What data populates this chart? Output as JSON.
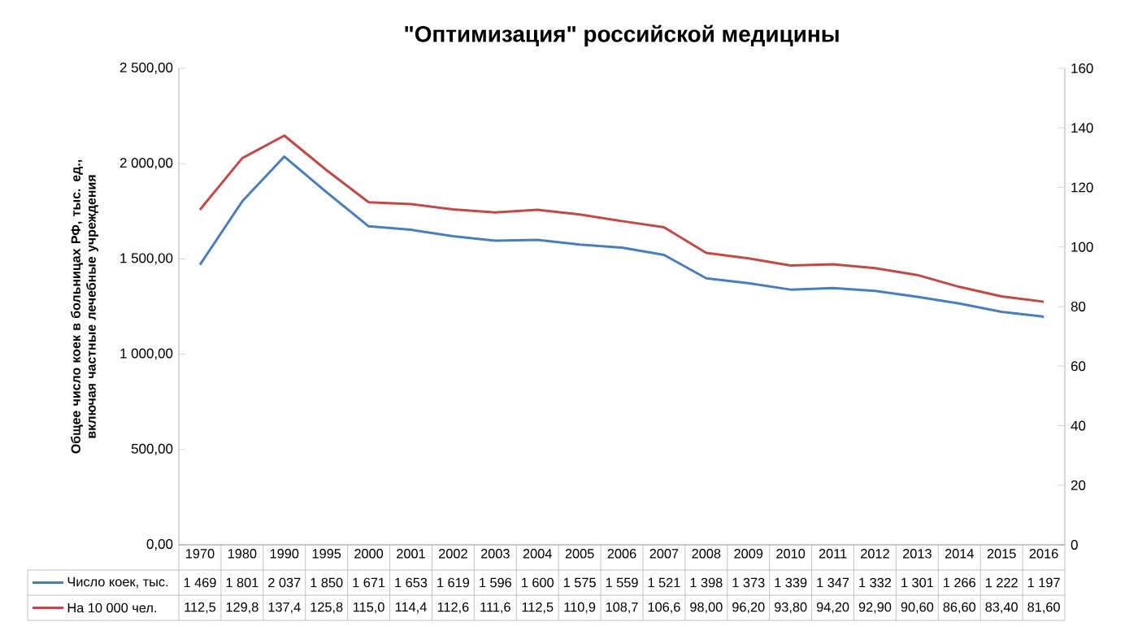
{
  "chart_data": {
    "type": "line",
    "title": "\"Оптимизация\" российской медицины",
    "ylabel": "Общее число коек в больницах РФ, тыс. ед., включая частные лечебные учреждения",
    "categories": [
      "1970",
      "1980",
      "1990",
      "1995",
      "2000",
      "2001",
      "2002",
      "2003",
      "2004",
      "2005",
      "2006",
      "2007",
      "2008",
      "2009",
      "2010",
      "2011",
      "2012",
      "2013",
      "2014",
      "2015",
      "2016"
    ],
    "series": [
      {
        "name": "Число коек, тыс.",
        "color": "#4a7ebb",
        "values": [
          1469,
          1801,
          2037,
          1850,
          1671,
          1653,
          1619,
          1596,
          1600,
          1575,
          1559,
          1521,
          1398,
          1373,
          1339,
          1347,
          1332,
          1301,
          1266,
          1222,
          1197
        ],
        "value_labels": [
          "1 469",
          "1 801",
          "2 037",
          "1 850",
          "1 671",
          "1 653",
          "1 619",
          "1 596",
          "1 600",
          "1 575",
          "1 559",
          "1 521",
          "1 398",
          "1 373",
          "1 339",
          "1 347",
          "1 332",
          "1 301",
          "1 266",
          "1 222",
          "1 197"
        ]
      },
      {
        "name": "На 10 000 чел.",
        "color": "#be4b48",
        "axis": "y2",
        "values": [
          112.5,
          129.8,
          137.4,
          125.8,
          115.0,
          114.4,
          112.6,
          111.6,
          112.5,
          110.9,
          108.7,
          106.6,
          98.0,
          96.2,
          93.8,
          94.2,
          92.9,
          90.6,
          86.6,
          83.4,
          81.6
        ],
        "value_labels": [
          "112,5",
          "129,8",
          "137,4",
          "125,8",
          "115,0",
          "114,4",
          "112,6",
          "111,6",
          "112,5",
          "110,9",
          "108,7",
          "106,6",
          "98,00",
          "96,20",
          "93,80",
          "94,20",
          "92,90",
          "90,60",
          "86,60",
          "83,40",
          "81,60"
        ]
      }
    ],
    "ylim": [
      0,
      2500
    ],
    "yticks": [
      {
        "value": 0,
        "label": "0,00"
      },
      {
        "value": 500,
        "label": "500,00"
      },
      {
        "value": 1000,
        "label": "1 000,00"
      },
      {
        "value": 1500,
        "label": "1 500,00"
      },
      {
        "value": 2000,
        "label": "2 000,00"
      },
      {
        "value": 2500,
        "label": "2 500,00"
      }
    ],
    "y2lim": [
      0,
      160
    ],
    "y2ticks": [
      0,
      20,
      40,
      60,
      80,
      100,
      120,
      140,
      160
    ],
    "legend": "bottom",
    "marker": "none",
    "line_style": "solid"
  }
}
